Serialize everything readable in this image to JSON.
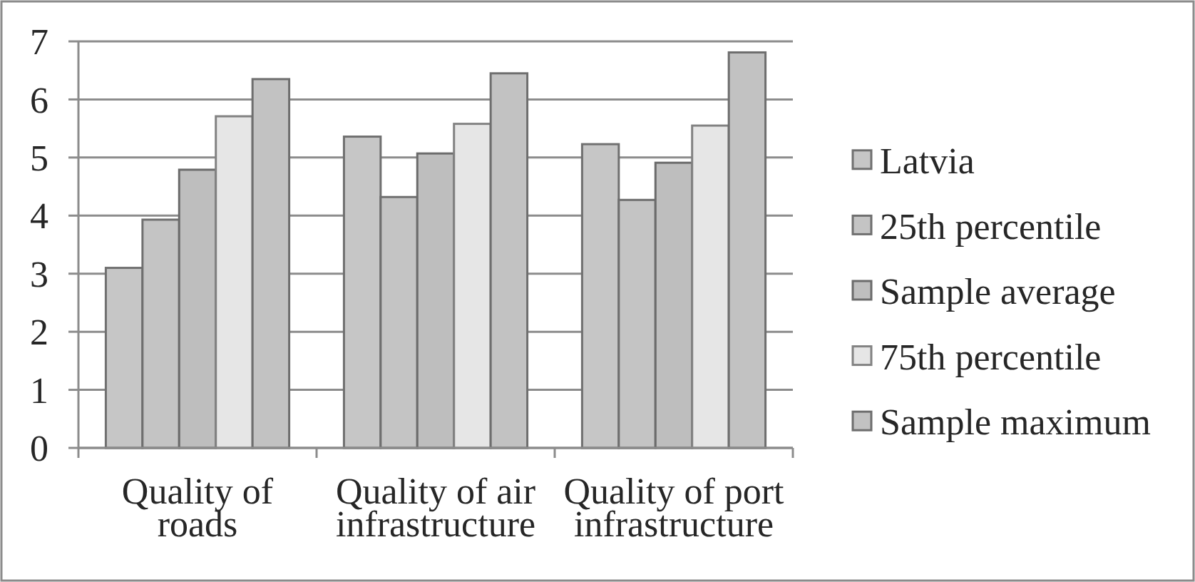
{
  "chart_data": {
    "type": "bar",
    "categories": [
      "Quality of roads",
      "Quality of air infrastructure",
      "Quality of port infrastructure"
    ],
    "series": [
      {
        "name": "Latvia",
        "color": "#c6c6c6",
        "values": [
          3.1,
          5.36,
          5.23
        ]
      },
      {
        "name": "25th percentile",
        "color": "#c4c4c4",
        "values": [
          3.93,
          4.32,
          4.27
        ]
      },
      {
        "name": "Sample average",
        "color": "#bebebe",
        "values": [
          4.79,
          5.07,
          4.91
        ]
      },
      {
        "name": "75th percentile",
        "color": "#e6e6e6",
        "values": [
          5.71,
          5.58,
          5.55
        ]
      },
      {
        "name": "Sample maximum",
        "color": "#c2c2c2",
        "values": [
          6.35,
          6.45,
          6.81
        ]
      }
    ],
    "ylim": [
      0,
      7
    ],
    "yticks": [
      0,
      1,
      2,
      3,
      4,
      5,
      6,
      7
    ],
    "grid": "y",
    "legend": "right"
  }
}
